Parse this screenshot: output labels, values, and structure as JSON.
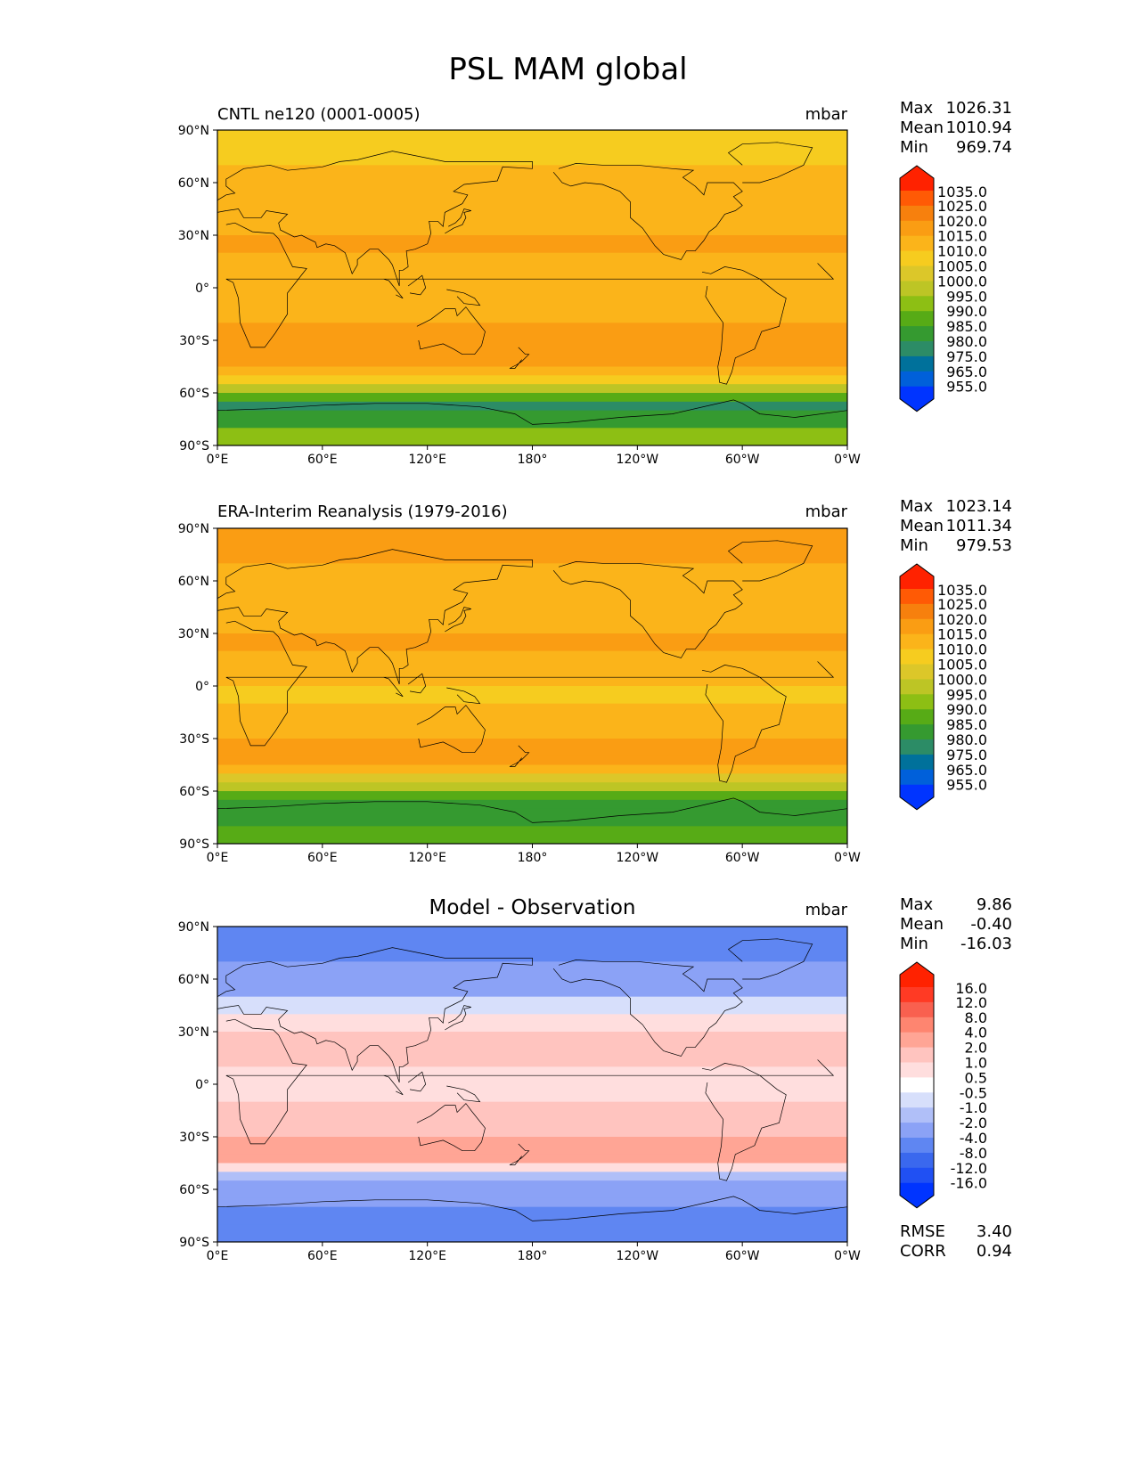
{
  "title": "PSL MAM global",
  "colors": {
    "abs_levels": [
      "#0034ff",
      "#0060da",
      "#00719b",
      "#2c8c66",
      "#359a30",
      "#57ab16",
      "#8dbf14",
      "#bdc525",
      "#dcc729",
      "#f6cc1f",
      "#fbb41a",
      "#fa9d13",
      "#f7800d",
      "#ff5a05",
      "#ff2200"
    ],
    "diff_levels": [
      "#0034ff",
      "#2050f3",
      "#3a68ee",
      "#5f86f2",
      "#8ba2f6",
      "#b0bff8",
      "#d7dffb",
      "#ffffff",
      "#ffdede",
      "#ffc4bf",
      "#ffa595",
      "#fe8570",
      "#f9604f",
      "#ff3a24",
      "#ff2200"
    ],
    "coastline": "#000000"
  },
  "axes": {
    "x_ticks": [
      "0°E",
      "60°E",
      "120°E",
      "180°",
      "120°W",
      "60°W",
      "0°W"
    ],
    "y_ticks": [
      "90°N",
      "60°N",
      "30°N",
      "0°",
      "30°S",
      "60°S",
      "90°S"
    ]
  },
  "panels": [
    {
      "title": "CNTL ne120 (0001-0005)",
      "units": "mbar",
      "stats": [
        {
          "label": "Max",
          "value": "1026.31"
        },
        {
          "label": "Mean",
          "value": "1010.94"
        },
        {
          "label": "Min",
          "value": "969.74"
        }
      ],
      "colorbar": [
        "1035.0",
        "1025.0",
        "1020.0",
        "1015.0",
        "1010.0",
        "1005.0",
        "1000.0",
        "995.0",
        "990.0",
        "985.0",
        "980.0",
        "975.0",
        "965.0",
        "955.0"
      ]
    },
    {
      "title": "ERA-Interim Reanalysis (1979-2016)",
      "units": "mbar",
      "stats": [
        {
          "label": "Max",
          "value": "1023.14"
        },
        {
          "label": "Mean",
          "value": "1011.34"
        },
        {
          "label": "Min",
          "value": "979.53"
        }
      ],
      "colorbar": [
        "1035.0",
        "1025.0",
        "1020.0",
        "1015.0",
        "1010.0",
        "1005.0",
        "1000.0",
        "995.0",
        "990.0",
        "985.0",
        "980.0",
        "975.0",
        "965.0",
        "955.0"
      ]
    },
    {
      "title": "Model - Observation",
      "units": "mbar",
      "stats": [
        {
          "label": "Max",
          "value": "9.86"
        },
        {
          "label": "Mean",
          "value": "-0.40"
        },
        {
          "label": "Min",
          "value": "-16.03"
        }
      ],
      "colorbar": [
        "16.0",
        "12.0",
        "8.0",
        "4.0",
        "2.0",
        "1.0",
        "0.5",
        "-0.5",
        "-1.0",
        "-2.0",
        "-4.0",
        "-8.0",
        "-12.0",
        "-16.0"
      ],
      "metrics": [
        {
          "label": "RMSE",
          "value": "3.40"
        },
        {
          "label": "CORR",
          "value": "0.94"
        }
      ]
    }
  ],
  "chart_data": [
    {
      "type": "heatmap",
      "title": "CNTL ne120 (0001-0005)",
      "variable": "PSL",
      "season": "MAM",
      "units": "mbar",
      "x_range_lon": [
        0,
        360
      ],
      "y_range_lat": [
        -90,
        90
      ],
      "levels": [
        955,
        965,
        975,
        980,
        985,
        990,
        995,
        1000,
        1005,
        1010,
        1015,
        1020,
        1025,
        1035
      ],
      "lat": [
        90,
        70,
        50,
        40,
        30,
        20,
        10,
        0,
        -10,
        -20,
        -30,
        -40,
        -45,
        -50,
        -55,
        -60,
        -65,
        -70,
        -80,
        -90
      ],
      "zonal_mean": [
        1008,
        1010,
        1012,
        1014,
        1016,
        1013,
        1011,
        1011,
        1012,
        1015,
        1018,
        1019,
        1013,
        1005,
        995,
        985,
        978,
        980,
        993,
        998
      ],
      "stats": {
        "max": 1026.31,
        "mean": 1010.94,
        "min": 969.74
      }
    },
    {
      "type": "heatmap",
      "title": "ERA-Interim Reanalysis (1979-2016)",
      "variable": "PSL",
      "season": "MAM",
      "units": "mbar",
      "x_range_lon": [
        0,
        360
      ],
      "y_range_lat": [
        -90,
        90
      ],
      "levels": [
        955,
        965,
        975,
        980,
        985,
        990,
        995,
        1000,
        1005,
        1010,
        1015,
        1020,
        1025,
        1035
      ],
      "lat": [
        90,
        70,
        50,
        40,
        30,
        20,
        10,
        0,
        -10,
        -20,
        -30,
        -40,
        -45,
        -50,
        -55,
        -60,
        -65,
        -70,
        -80,
        -90
      ],
      "zonal_mean": [
        1015,
        1014,
        1013,
        1014,
        1016,
        1013,
        1010,
        1009,
        1011,
        1014,
        1017,
        1017,
        1012,
        1004,
        995,
        986,
        982,
        984,
        989,
        992
      ],
      "stats": {
        "max": 1023.14,
        "mean": 1011.34,
        "min": 979.53
      }
    },
    {
      "type": "heatmap",
      "title": "Model - Observation",
      "variable": "PSL",
      "season": "MAM",
      "units": "mbar",
      "x_range_lon": [
        0,
        360
      ],
      "y_range_lat": [
        -90,
        90
      ],
      "levels": [
        -16,
        -12,
        -8,
        -4,
        -2,
        -1,
        -0.5,
        0.5,
        1,
        2,
        4,
        8,
        12,
        16
      ],
      "lat": [
        90,
        70,
        50,
        40,
        30,
        20,
        10,
        0,
        -10,
        -20,
        -30,
        -40,
        -45,
        -50,
        -55,
        -60,
        -65,
        -70,
        -80,
        -90
      ],
      "zonal_mean": [
        -6,
        -4,
        -1,
        0.5,
        1.5,
        1.2,
        0.8,
        0.6,
        1,
        1.5,
        2,
        2.5,
        0.8,
        -1.5,
        -3,
        -4,
        -4,
        -5,
        -6,
        -6
      ],
      "stats": {
        "max": 9.86,
        "mean": -0.4,
        "min": -16.03,
        "rmse": 3.4,
        "corr": 0.94
      }
    }
  ]
}
